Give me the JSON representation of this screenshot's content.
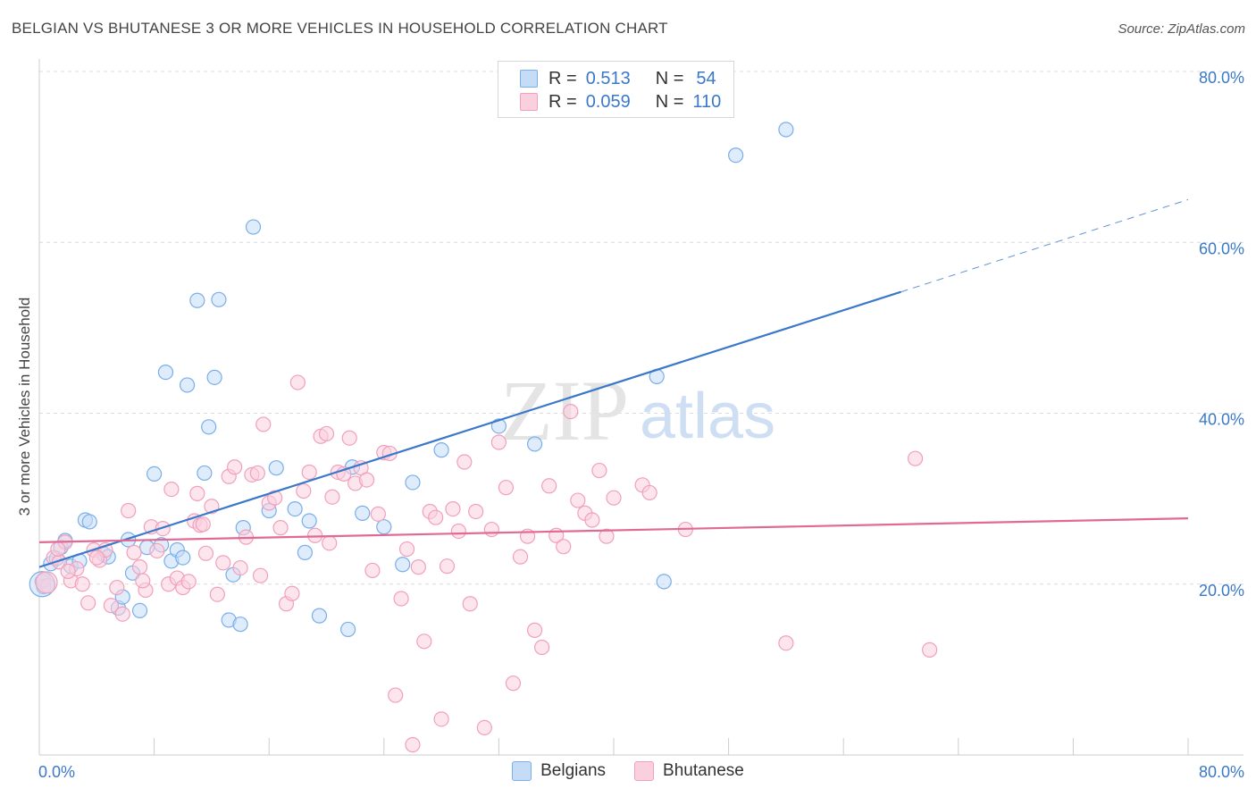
{
  "title": "BELGIAN VS BHUTANESE 3 OR MORE VEHICLES IN HOUSEHOLD CORRELATION CHART",
  "source": "Source: ZipAtlas.com",
  "watermark": {
    "zip": "ZIP",
    "atlas": "atlas"
  },
  "legend": {
    "rows": [
      {
        "r_label": "R =",
        "r_value": "0.513",
        "n_label": "N =",
        "n_value": "54",
        "color": "#7aaee8",
        "fill": "#c5dcf7"
      },
      {
        "r_label": "R =",
        "r_value": "0.059",
        "n_label": "N =",
        "n_value": "110",
        "color": "#f0a0bc",
        "fill": "#fbd0de"
      }
    ]
  },
  "bottom_legend": [
    {
      "label": "Belgians",
      "color": "#7aaee8",
      "fill": "#c5dcf7"
    },
    {
      "label": "Bhutanese",
      "color": "#f0a0bc",
      "fill": "#fbd0de"
    }
  ],
  "chart_data": {
    "type": "scatter",
    "title": "BELGIAN VS BHUTANESE 3 OR MORE VEHICLES IN HOUSEHOLD CORRELATION CHART",
    "xlabel": "",
    "ylabel": "3 or more Vehicles in Household",
    "xlim": [
      0,
      80
    ],
    "ylim": [
      0,
      80
    ],
    "x_tick_labels": [
      "0.0%",
      "80.0%"
    ],
    "y_ticks": [
      20,
      40,
      60,
      80
    ],
    "y_tick_labels": [
      "20.0%",
      "40.0%",
      "60.0%",
      "80.0%"
    ],
    "grid": true,
    "series": [
      {
        "name": "Belgians",
        "color": "#3a78c9",
        "stroke": "#7aaee8",
        "fill": "#c5dcf7",
        "trend": {
          "x0": 0,
          "y0": 22.0,
          "x1": 60,
          "y1": 54.2,
          "dash_x1": 80,
          "dash_y1": 65.0
        },
        "points": [
          [
            0.2,
            20.3
          ],
          [
            0.8,
            22.4
          ],
          [
            1.2,
            23.0
          ],
          [
            1.5,
            24.3
          ],
          [
            1.8,
            25.1
          ],
          [
            2.2,
            22.1
          ],
          [
            2.8,
            22.7
          ],
          [
            3.2,
            27.5
          ],
          [
            3.5,
            27.3
          ],
          [
            4.5,
            23.5
          ],
          [
            4.8,
            23.2
          ],
          [
            5.5,
            17.2
          ],
          [
            5.8,
            18.5
          ],
          [
            6.2,
            25.2
          ],
          [
            6.5,
            21.3
          ],
          [
            7.0,
            16.9
          ],
          [
            7.5,
            24.3
          ],
          [
            8.0,
            32.9
          ],
          [
            8.5,
            24.6
          ],
          [
            8.8,
            44.8
          ],
          [
            9.2,
            22.7
          ],
          [
            9.6,
            24.0
          ],
          [
            10.0,
            23.1
          ],
          [
            10.3,
            43.3
          ],
          [
            11.0,
            53.2
          ],
          [
            11.5,
            33.0
          ],
          [
            11.8,
            38.4
          ],
          [
            12.2,
            44.2
          ],
          [
            12.5,
            53.3
          ],
          [
            13.2,
            15.8
          ],
          [
            13.5,
            21.1
          ],
          [
            14.0,
            15.3
          ],
          [
            14.2,
            26.6
          ],
          [
            14.9,
            61.8
          ],
          [
            16.0,
            28.6
          ],
          [
            16.5,
            33.6
          ],
          [
            17.8,
            28.8
          ],
          [
            18.5,
            23.7
          ],
          [
            18.8,
            27.4
          ],
          [
            19.5,
            16.3
          ],
          [
            21.5,
            14.7
          ],
          [
            21.8,
            33.7
          ],
          [
            22.5,
            28.3
          ],
          [
            24.0,
            26.7
          ],
          [
            25.3,
            22.3
          ],
          [
            26.0,
            31.9
          ],
          [
            28.0,
            35.7
          ],
          [
            32.0,
            38.5
          ],
          [
            34.5,
            36.4
          ],
          [
            43.0,
            44.3
          ],
          [
            43.5,
            20.3
          ],
          [
            48.5,
            70.2
          ],
          [
            52.0,
            73.2
          ],
          [
            0.3,
            19.7
          ]
        ]
      },
      {
        "name": "Bhutanese",
        "color": "#e06a94",
        "stroke": "#f0a0bc",
        "fill": "#fbd0de",
        "trend": {
          "x0": 0,
          "y0": 24.9,
          "x1": 80,
          "y1": 27.7
        },
        "points": [
          [
            0.3,
            20.5
          ],
          [
            0.6,
            19.8
          ],
          [
            1.0,
            23.1
          ],
          [
            1.4,
            22.6
          ],
          [
            1.8,
            24.9
          ],
          [
            2.2,
            20.4
          ],
          [
            2.6,
            21.8
          ],
          [
            3.0,
            20.0
          ],
          [
            3.4,
            17.8
          ],
          [
            3.8,
            24.0
          ],
          [
            4.2,
            22.8
          ],
          [
            4.6,
            24.0
          ],
          [
            5.0,
            17.5
          ],
          [
            5.4,
            19.6
          ],
          [
            5.8,
            16.5
          ],
          [
            6.2,
            28.6
          ],
          [
            6.6,
            23.7
          ],
          [
            7.0,
            22.0
          ],
          [
            7.4,
            19.3
          ],
          [
            7.8,
            26.7
          ],
          [
            8.2,
            23.9
          ],
          [
            8.6,
            26.5
          ],
          [
            9.0,
            20.0
          ],
          [
            9.2,
            31.1
          ],
          [
            9.6,
            20.7
          ],
          [
            10.0,
            19.6
          ],
          [
            10.4,
            20.3
          ],
          [
            10.8,
            27.4
          ],
          [
            11.0,
            30.6
          ],
          [
            11.2,
            26.9
          ],
          [
            11.6,
            23.6
          ],
          [
            12.0,
            29.1
          ],
          [
            12.4,
            18.8
          ],
          [
            12.8,
            22.5
          ],
          [
            13.2,
            32.6
          ],
          [
            13.6,
            33.7
          ],
          [
            14.0,
            21.9
          ],
          [
            14.4,
            25.5
          ],
          [
            14.8,
            32.8
          ],
          [
            15.2,
            33.0
          ],
          [
            15.6,
            38.7
          ],
          [
            16.0,
            29.5
          ],
          [
            16.4,
            30.1
          ],
          [
            16.8,
            26.6
          ],
          [
            17.2,
            17.7
          ],
          [
            17.6,
            18.9
          ],
          [
            18.0,
            43.6
          ],
          [
            18.4,
            30.9
          ],
          [
            18.8,
            33.1
          ],
          [
            19.2,
            25.7
          ],
          [
            19.6,
            37.3
          ],
          [
            20.0,
            37.6
          ],
          [
            20.4,
            30.2
          ],
          [
            20.8,
            33.1
          ],
          [
            21.2,
            32.9
          ],
          [
            21.6,
            37.1
          ],
          [
            22.0,
            31.8
          ],
          [
            22.4,
            33.6
          ],
          [
            22.8,
            32.2
          ],
          [
            23.2,
            21.6
          ],
          [
            23.6,
            28.2
          ],
          [
            24.0,
            35.4
          ],
          [
            24.4,
            35.3
          ],
          [
            24.8,
            7.0
          ],
          [
            25.2,
            18.3
          ],
          [
            25.6,
            24.1
          ],
          [
            26.0,
            1.2
          ],
          [
            26.4,
            22.0
          ],
          [
            26.8,
            13.3
          ],
          [
            27.2,
            28.5
          ],
          [
            27.6,
            27.8
          ],
          [
            28.0,
            4.2
          ],
          [
            28.4,
            22.1
          ],
          [
            28.8,
            28.8
          ],
          [
            29.2,
            26.2
          ],
          [
            29.6,
            34.3
          ],
          [
            30.0,
            17.7
          ],
          [
            30.4,
            28.5
          ],
          [
            31.0,
            3.2
          ],
          [
            31.5,
            26.4
          ],
          [
            32.0,
            36.6
          ],
          [
            32.5,
            31.3
          ],
          [
            33.0,
            8.4
          ],
          [
            33.5,
            23.2
          ],
          [
            34.0,
            25.6
          ],
          [
            34.5,
            14.6
          ],
          [
            35.0,
            12.6
          ],
          [
            35.5,
            31.5
          ],
          [
            36.0,
            25.7
          ],
          [
            36.5,
            24.4
          ],
          [
            37.0,
            40.2
          ],
          [
            37.5,
            29.8
          ],
          [
            38.0,
            28.3
          ],
          [
            38.5,
            27.5
          ],
          [
            39.0,
            33.3
          ],
          [
            39.5,
            25.6
          ],
          [
            40.0,
            30.1
          ],
          [
            42.0,
            31.6
          ],
          [
            42.5,
            30.7
          ],
          [
            45.0,
            26.4
          ],
          [
            52.0,
            13.1
          ],
          [
            61.0,
            34.7
          ],
          [
            62.0,
            12.3
          ],
          [
            1.3,
            24.1
          ],
          [
            2.0,
            21.5
          ],
          [
            4.0,
            23.1
          ],
          [
            7.2,
            20.4
          ],
          [
            11.4,
            27.0
          ],
          [
            15.4,
            21.0
          ],
          [
            20.2,
            24.8
          ]
        ]
      }
    ]
  }
}
